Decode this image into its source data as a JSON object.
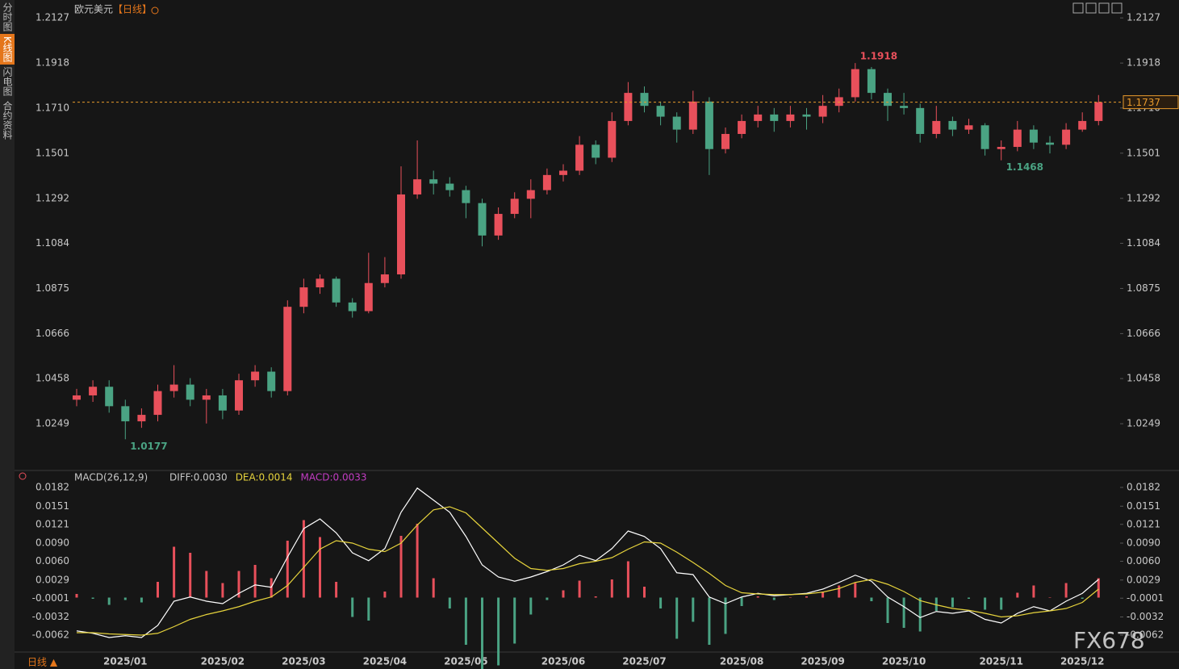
{
  "sidebar": [
    "分时图",
    "K线图",
    "闪电图",
    "合约资料"
  ],
  "footer": "日线 ▲",
  "watermark": "FX678",
  "chart_data": [
    {
      "type": "candlestick",
      "title": "欧元美元",
      "subtitle": "【日线】",
      "up_color": "#e8505b",
      "down_color": "#4aa383",
      "last_color": "#e89a2c",
      "categories": [
        null,
        null,
        null,
        "2025/01",
        null,
        null,
        null,
        null,
        null,
        "2025/02",
        null,
        null,
        null,
        null,
        "2025/03",
        null,
        null,
        null,
        null,
        "2025/04",
        null,
        null,
        null,
        null,
        "2025/05",
        null,
        null,
        null,
        null,
        null,
        "2025/06",
        null,
        null,
        null,
        null,
        "2025/07",
        null,
        null,
        null,
        null,
        null,
        "2025/08",
        null,
        null,
        null,
        null,
        "2025/09",
        null,
        null,
        null,
        null,
        "2025/10",
        null,
        null,
        null,
        null,
        null,
        "2025/11",
        null,
        null,
        null,
        null,
        "2025/12",
        null
      ],
      "open": [
        1.036,
        1.038,
        1.042,
        1.033,
        1.026,
        1.029,
        1.04,
        1.043,
        1.036,
        1.038,
        1.031,
        1.045,
        1.049,
        1.04,
        1.079,
        1.088,
        1.092,
        1.081,
        1.077,
        1.09,
        1.094,
        1.131,
        1.138,
        1.136,
        1.133,
        1.127,
        1.112,
        1.122,
        1.129,
        1.133,
        1.14,
        1.142,
        1.154,
        1.148,
        1.165,
        1.178,
        1.172,
        1.167,
        1.161,
        1.174,
        1.152,
        1.159,
        1.165,
        1.168,
        1.165,
        1.168,
        1.167,
        1.172,
        1.176,
        1.189,
        1.178,
        1.172,
        1.171,
        1.159,
        1.165,
        1.161,
        1.163,
        1.152,
        1.153,
        1.161,
        1.155,
        1.154,
        1.161,
        1.165
      ],
      "high": [
        1.041,
        1.045,
        1.045,
        1.036,
        1.032,
        1.043,
        1.052,
        1.046,
        1.041,
        1.041,
        1.048,
        1.052,
        1.051,
        1.082,
        1.092,
        1.094,
        1.093,
        1.083,
        1.104,
        1.102,
        1.144,
        1.156,
        1.142,
        1.139,
        1.135,
        1.129,
        1.125,
        1.132,
        1.138,
        1.143,
        1.145,
        1.158,
        1.156,
        1.169,
        1.183,
        1.181,
        1.174,
        1.169,
        1.179,
        1.176,
        1.162,
        1.168,
        1.172,
        1.171,
        1.172,
        1.171,
        1.177,
        1.18,
        1.1918,
        1.19,
        1.18,
        1.178,
        1.173,
        1.172,
        1.167,
        1.166,
        1.164,
        1.156,
        1.165,
        1.163,
        1.158,
        1.164,
        1.169,
        1.177
      ],
      "low": [
        1.033,
        1.035,
        1.03,
        1.0177,
        1.023,
        1.026,
        1.037,
        1.033,
        1.025,
        1.027,
        1.029,
        1.042,
        1.037,
        1.038,
        1.076,
        1.085,
        1.079,
        1.074,
        1.076,
        1.088,
        1.092,
        1.129,
        1.131,
        1.13,
        1.12,
        1.107,
        1.11,
        1.12,
        1.12,
        1.131,
        1.137,
        1.14,
        1.145,
        1.146,
        1.163,
        1.169,
        1.163,
        1.155,
        1.159,
        1.14,
        1.15,
        1.157,
        1.162,
        1.16,
        1.162,
        1.161,
        1.164,
        1.169,
        1.174,
        1.175,
        1.165,
        1.168,
        1.155,
        1.157,
        1.158,
        1.159,
        1.149,
        1.1468,
        1.151,
        1.152,
        1.15,
        1.152,
        1.16,
        1.163
      ],
      "close": [
        1.038,
        1.042,
        1.033,
        1.026,
        1.029,
        1.04,
        1.043,
        1.036,
        1.038,
        1.031,
        1.045,
        1.049,
        1.04,
        1.079,
        1.088,
        1.092,
        1.081,
        1.077,
        1.09,
        1.094,
        1.131,
        1.138,
        1.136,
        1.133,
        1.127,
        1.112,
        1.122,
        1.129,
        1.133,
        1.14,
        1.142,
        1.154,
        1.148,
        1.165,
        1.178,
        1.172,
        1.167,
        1.161,
        1.174,
        1.152,
        1.159,
        1.165,
        1.168,
        1.165,
        1.168,
        1.167,
        1.172,
        1.176,
        1.189,
        1.178,
        1.172,
        1.171,
        1.159,
        1.165,
        1.161,
        1.163,
        1.152,
        1.153,
        1.161,
        1.155,
        1.154,
        1.161,
        1.165,
        1.1737
      ],
      "ylim": [
        1.004,
        1.218
      ],
      "yticks": [
        1.2127,
        1.1918,
        {
          "value": 1.171,
          "label": "1.1710"
        },
        1.1501,
        1.1292,
        1.1084,
        1.0875,
        1.0666,
        1.0458,
        1.0249
      ]
    },
    {
      "type": "macd",
      "title": "MACD(26,12,9)",
      "series": [
        {
          "legend": "DIFF:0.0030",
          "color": "#ffffff",
          "values": [
            -0.0055,
            -0.0059,
            -0.0066,
            -0.0063,
            -0.0066,
            -0.0046,
            -0.0006,
            0.0001,
            -0.0006,
            -0.001,
            0.0007,
            0.0021,
            0.0017,
            0.0067,
            0.0114,
            0.013,
            0.0107,
            0.0074,
            0.0061,
            0.0081,
            0.0141,
            0.0181,
            0.0161,
            0.0141,
            0.0101,
            0.0054,
            0.0034,
            0.0027,
            0.0034,
            0.0043,
            0.0054,
            0.007,
            0.0061,
            0.0081,
            0.011,
            0.0101,
            0.0081,
            0.0041,
            0.0038,
            0.0001,
            -0.001,
            0.0001,
            0.0007,
            0.0003,
            0.0005,
            0.0007,
            0.0014,
            0.0025,
            0.0037,
            0.0027,
            0.0001,
            -0.0015,
            -0.0033,
            -0.0023,
            -0.0026,
            -0.0022,
            -0.0036,
            -0.0042,
            -0.0026,
            -0.0015,
            -0.0022,
            -0.0006,
            0.0007,
            0.003
          ]
        },
        {
          "legend": "DEA:0.0014",
          "color": "#e6d33c",
          "values": [
            -0.0058,
            -0.0058,
            -0.006,
            -0.0061,
            -0.0062,
            -0.0059,
            -0.0048,
            -0.0036,
            -0.0028,
            -0.0022,
            -0.0015,
            -0.0006,
            0.0001,
            0.002,
            0.005,
            0.008,
            0.0094,
            0.009,
            0.008,
            0.0076,
            0.009,
            0.012,
            0.0145,
            0.015,
            0.014,
            0.0115,
            0.009,
            0.0065,
            0.0048,
            0.0045,
            0.0048,
            0.0056,
            0.006,
            0.0066,
            0.008,
            0.0092,
            0.009,
            0.0075,
            0.0058,
            0.004,
            0.002,
            0.0008,
            0.0006,
            0.0005,
            0.0005,
            0.0006,
            0.0009,
            0.0015,
            0.0025,
            0.003,
            0.0022,
            0.001,
            -0.0005,
            -0.0012,
            -0.0018,
            -0.0021,
            -0.0026,
            -0.0032,
            -0.003,
            -0.0025,
            -0.0022,
            -0.0018,
            -0.0008,
            0.0014
          ]
        },
        {
          "legend": "MACD:0.0033",
          "color": "#c23cc2",
          "up_color": "#e8505b",
          "down_color": "#4aa383",
          "values": [
            0.0006,
            -0.0002,
            -0.0012,
            -0.0004,
            -0.0008,
            0.0026,
            0.0084,
            0.0074,
            0.0044,
            0.0024,
            0.0044,
            0.0054,
            0.0032,
            0.0094,
            0.0128,
            0.01,
            0.0026,
            -0.0032,
            -0.0038,
            0.001,
            0.0102,
            0.0122,
            0.0032,
            -0.0018,
            -0.0078,
            -0.0122,
            -0.0112,
            -0.0076,
            -0.0028,
            -0.0004,
            0.0012,
            0.0028,
            0.0002,
            0.003,
            0.006,
            0.0018,
            -0.0018,
            -0.0068,
            -0.004,
            -0.0078,
            -0.006,
            -0.0014,
            0.0002,
            -0.0004,
            0.0,
            0.0002,
            0.001,
            0.002,
            0.0024,
            -0.0006,
            -0.0042,
            -0.005,
            -0.0056,
            -0.0022,
            -0.0016,
            -0.0002,
            -0.002,
            -0.002,
            0.0008,
            0.002,
            0.0,
            0.0024,
            -0.0002,
            0.0032
          ]
        }
      ],
      "ylim": [
        -0.0086,
        0.0198
      ],
      "yticks": [
        0.0182,
        0.0151,
        0.0121,
        {
          "value": 0.009,
          "label": "0.0090"
        },
        {
          "value": 0.006,
          "label": "0.0060"
        },
        0.0029,
        -0.0001,
        -0.0032,
        -0.0062
      ]
    }
  ]
}
